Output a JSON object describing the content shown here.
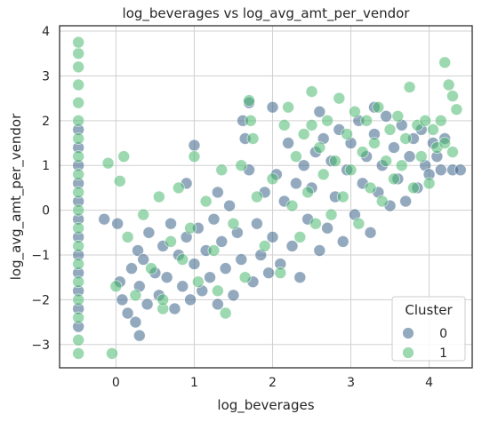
{
  "chart_data": {
    "type": "scatter",
    "title": "log_beverages vs log_avg_amt_per_vendor",
    "xlabel": "log_beverages",
    "ylabel": "log_avg_amt_per_vendor",
    "xlim": [
      -0.72,
      4.55
    ],
    "ylim": [
      -3.52,
      4.12
    ],
    "xticks": [
      0,
      1,
      2,
      3,
      4
    ],
    "yticks": [
      -3,
      -2,
      -1,
      0,
      1,
      2,
      3,
      4
    ],
    "grid": true,
    "legend": {
      "title": "Cluster",
      "placement": "bottom-right",
      "entries": [
        "0",
        "1"
      ]
    },
    "series": [
      {
        "name": "0",
        "color": "#3a6289",
        "points": [
          [
            -0.48,
            -2.6
          ],
          [
            -0.48,
            -2.2
          ],
          [
            -0.48,
            -1.8
          ],
          [
            -0.48,
            -1.4
          ],
          [
            -0.48,
            -1.0
          ],
          [
            -0.48,
            -0.6
          ],
          [
            -0.48,
            -0.2
          ],
          [
            -0.48,
            0.2
          ],
          [
            -0.48,
            0.6
          ],
          [
            -0.48,
            1.0
          ],
          [
            -0.48,
            1.4
          ],
          [
            -0.48,
            1.8
          ],
          [
            -0.15,
            -0.2
          ],
          [
            0.02,
            -0.3
          ],
          [
            0.05,
            -1.6
          ],
          [
            0.08,
            -2.0
          ],
          [
            0.15,
            -2.3
          ],
          [
            0.2,
            -1.3
          ],
          [
            0.25,
            -2.5
          ],
          [
            0.28,
            -0.9
          ],
          [
            0.3,
            -1.7
          ],
          [
            0.35,
            -1.1
          ],
          [
            0.4,
            -2.1
          ],
          [
            0.42,
            -0.5
          ],
          [
            0.5,
            -1.4
          ],
          [
            0.55,
            -1.9
          ],
          [
            0.6,
            -0.8
          ],
          [
            0.65,
            -1.5
          ],
          [
            0.7,
            -0.3
          ],
          [
            0.75,
            -2.2
          ],
          [
            0.8,
            -1.0
          ],
          [
            0.85,
            -1.7
          ],
          [
            0.9,
            -0.6
          ],
          [
            0.95,
            -2.0
          ],
          [
            1.0,
            -1.2
          ],
          [
            1.0,
            1.45
          ],
          [
            1.05,
            -0.4
          ],
          [
            1.1,
            -1.8
          ],
          [
            1.15,
            -0.9
          ],
          [
            1.2,
            -1.5
          ],
          [
            1.25,
            -0.2
          ],
          [
            1.3,
            -2.1
          ],
          [
            1.35,
            -0.7
          ],
          [
            1.4,
            -1.3
          ],
          [
            1.45,
            0.1
          ],
          [
            1.5,
            -1.9
          ],
          [
            1.55,
            -0.5
          ],
          [
            1.6,
            -1.1
          ],
          [
            1.62,
            2.0
          ],
          [
            1.65,
            1.6
          ],
          [
            1.7,
            2.4
          ],
          [
            1.7,
            0.9
          ],
          [
            1.75,
            -1.6
          ],
          [
            1.8,
            -0.3
          ],
          [
            1.85,
            -1.0
          ],
          [
            1.9,
            0.4
          ],
          [
            1.95,
            -1.4
          ],
          [
            2.0,
            -0.6
          ],
          [
            2.05,
            0.8
          ],
          [
            2.1,
            -1.2
          ],
          [
            2.15,
            0.2
          ],
          [
            2.2,
            1.5
          ],
          [
            2.25,
            -0.8
          ],
          [
            2.3,
            0.6
          ],
          [
            2.35,
            -1.5
          ],
          [
            2.4,
            1.0
          ],
          [
            2.45,
            -0.2
          ],
          [
            2.5,
            0.5
          ],
          [
            2.55,
            1.3
          ],
          [
            2.6,
            -0.9
          ],
          [
            2.65,
            1.6
          ],
          [
            2.7,
            -0.4
          ],
          [
            2.75,
            1.1
          ],
          [
            2.8,
            0.3
          ],
          [
            2.85,
            1.8
          ],
          [
            2.9,
            -0.7
          ],
          [
            2.95,
            0.9
          ],
          [
            3.0,
            1.5
          ],
          [
            3.05,
            -0.1
          ],
          [
            3.1,
            2.0
          ],
          [
            3.15,
            0.6
          ],
          [
            3.2,
            1.2
          ],
          [
            3.25,
            -0.5
          ],
          [
            3.3,
            1.7
          ],
          [
            3.35,
            0.4
          ],
          [
            3.4,
            1.0
          ],
          [
            3.45,
            2.1
          ],
          [
            3.5,
            0.1
          ],
          [
            3.55,
            1.4
          ],
          [
            3.6,
            0.7
          ],
          [
            3.65,
            1.9
          ],
          [
            3.7,
            0.2
          ],
          [
            3.75,
            1.2
          ],
          [
            3.8,
            1.6
          ],
          [
            3.85,
            0.5
          ],
          [
            3.9,
            1.8
          ],
          [
            3.95,
            1.0
          ],
          [
            4.0,
            0.8
          ],
          [
            4.05,
            1.5
          ],
          [
            4.1,
            1.2
          ],
          [
            4.15,
            0.9
          ],
          [
            4.2,
            1.6
          ],
          [
            4.3,
            0.9
          ],
          [
            4.4,
            0.9
          ],
          [
            0.3,
            -2.8
          ],
          [
            0.9,
            0.6
          ],
          [
            1.3,
            0.4
          ],
          [
            2.0,
            2.3
          ],
          [
            2.6,
            2.2
          ],
          [
            3.3,
            2.3
          ]
        ]
      },
      {
        "name": "1",
        "color": "#4ab86f",
        "points": [
          [
            -0.48,
            -3.2
          ],
          [
            -0.48,
            -2.9
          ],
          [
            -0.48,
            -2.4
          ],
          [
            -0.48,
            -2.0
          ],
          [
            -0.48,
            -1.6
          ],
          [
            -0.48,
            -1.2
          ],
          [
            -0.48,
            -0.8
          ],
          [
            -0.48,
            -0.4
          ],
          [
            -0.48,
            0.0
          ],
          [
            -0.48,
            0.4
          ],
          [
            -0.48,
            0.8
          ],
          [
            -0.48,
            1.2
          ],
          [
            -0.48,
            1.6
          ],
          [
            -0.48,
            2.0
          ],
          [
            -0.48,
            2.4
          ],
          [
            -0.48,
            2.8
          ],
          [
            -0.48,
            3.2
          ],
          [
            -0.48,
            3.5
          ],
          [
            -0.48,
            3.75
          ],
          [
            -0.05,
            -3.2
          ],
          [
            -0.1,
            1.05
          ],
          [
            0.1,
            1.2
          ],
          [
            0.05,
            0.65
          ],
          [
            0.15,
            -0.6
          ],
          [
            0.25,
            -1.9
          ],
          [
            0.35,
            -0.1
          ],
          [
            0.45,
            -1.3
          ],
          [
            0.55,
            0.3
          ],
          [
            0.6,
            -2.2
          ],
          [
            0.7,
            -0.7
          ],
          [
            0.8,
            0.5
          ],
          [
            0.85,
            -1.1
          ],
          [
            0.95,
            -0.4
          ],
          [
            1.0,
            1.2
          ],
          [
            1.05,
            -1.6
          ],
          [
            1.15,
            0.2
          ],
          [
            1.25,
            -0.9
          ],
          [
            1.35,
            0.9
          ],
          [
            1.4,
            -2.3
          ],
          [
            1.5,
            -0.3
          ],
          [
            1.6,
            1.0
          ],
          [
            1.65,
            -1.5
          ],
          [
            1.7,
            2.45
          ],
          [
            1.72,
            2.0
          ],
          [
            1.75,
            1.6
          ],
          [
            1.8,
            0.3
          ],
          [
            1.9,
            -0.8
          ],
          [
            2.0,
            0.7
          ],
          [
            2.1,
            -1.4
          ],
          [
            2.15,
            1.9
          ],
          [
            2.2,
            2.3
          ],
          [
            2.25,
            0.1
          ],
          [
            2.3,
            1.2
          ],
          [
            2.35,
            -0.6
          ],
          [
            2.4,
            1.7
          ],
          [
            2.45,
            0.4
          ],
          [
            2.5,
            2.65
          ],
          [
            2.55,
            -0.3
          ],
          [
            2.6,
            1.4
          ],
          [
            2.65,
            0.8
          ],
          [
            2.7,
            2.0
          ],
          [
            2.75,
            -0.1
          ],
          [
            2.8,
            1.1
          ],
          [
            2.85,
            2.5
          ],
          [
            2.9,
            0.3
          ],
          [
            2.95,
            1.7
          ],
          [
            3.0,
            0.9
          ],
          [
            3.05,
            2.2
          ],
          [
            3.1,
            -0.3
          ],
          [
            3.15,
            1.3
          ],
          [
            3.2,
            2.0
          ],
          [
            3.25,
            0.5
          ],
          [
            3.3,
            1.5
          ],
          [
            3.35,
            2.3
          ],
          [
            3.4,
            0.2
          ],
          [
            3.45,
            1.1
          ],
          [
            3.5,
            1.8
          ],
          [
            3.55,
            0.7
          ],
          [
            3.6,
            2.1
          ],
          [
            3.65,
            1.0
          ],
          [
            3.7,
            1.6
          ],
          [
            3.75,
            2.75
          ],
          [
            3.8,
            0.5
          ],
          [
            3.85,
            1.9
          ],
          [
            3.9,
            1.2
          ],
          [
            3.95,
            2.0
          ],
          [
            4.0,
            0.6
          ],
          [
            4.05,
            1.8
          ],
          [
            4.1,
            1.4
          ],
          [
            4.2,
            3.3
          ],
          [
            4.25,
            2.8
          ],
          [
            4.3,
            2.55
          ],
          [
            4.35,
            2.25
          ],
          [
            4.15,
            2.0
          ],
          [
            4.2,
            1.5
          ],
          [
            4.3,
            1.3
          ],
          [
            0.0,
            -1.7
          ],
          [
            0.6,
            -2.0
          ],
          [
            1.3,
            -1.8
          ],
          [
            2.5,
            1.9
          ]
        ]
      }
    ]
  }
}
